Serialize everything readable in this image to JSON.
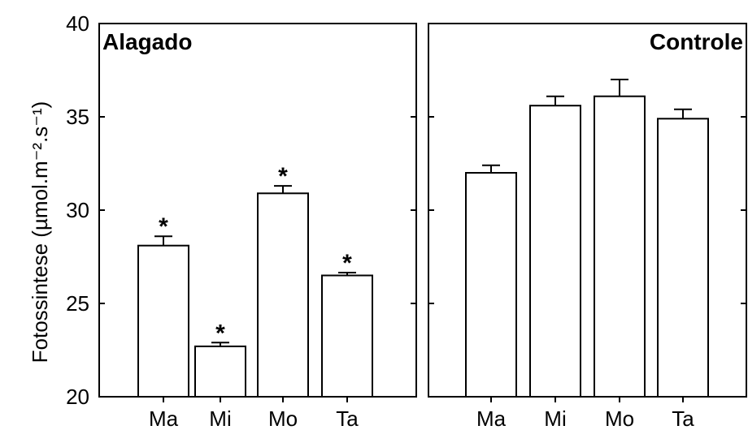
{
  "chart_data": {
    "type": "bar",
    "ylabel": "Fotossintese (µmol.m⁻².s⁻¹)",
    "ylim": [
      20,
      40
    ],
    "yticks": [
      "20",
      "25",
      "30",
      "35",
      "40"
    ],
    "categories": [
      "Ma",
      "Mi",
      "Mo",
      "Ta"
    ],
    "error_bars": true,
    "significance_marker": "*",
    "panels": [
      {
        "title": "Alagado",
        "title_position": "top-left",
        "values": [
          28.1,
          22.7,
          30.9,
          26.5
        ],
        "errors": [
          0.5,
          0.2,
          0.4,
          0.15
        ],
        "significant": [
          true,
          true,
          true,
          true
        ]
      },
      {
        "title": "Controle",
        "title_position": "top-right",
        "values": [
          32.0,
          35.6,
          36.1,
          34.9
        ],
        "errors": [
          0.4,
          0.5,
          0.9,
          0.5
        ],
        "significant": [
          false,
          false,
          false,
          false
        ]
      }
    ]
  }
}
